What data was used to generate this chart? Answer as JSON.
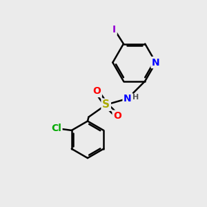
{
  "bg_color": "#ebebeb",
  "bond_color": "#000000",
  "bond_width": 1.8,
  "atom_colors": {
    "I": "#9400D3",
    "N": "#0000FF",
    "S": "#AAAA00",
    "O": "#FF0000",
    "Cl": "#00AA00",
    "H": "#555555",
    "C": "#000000"
  },
  "font_size_atoms": 10,
  "font_size_small": 8,
  "figsize": [
    3.0,
    3.0
  ],
  "dpi": 100
}
